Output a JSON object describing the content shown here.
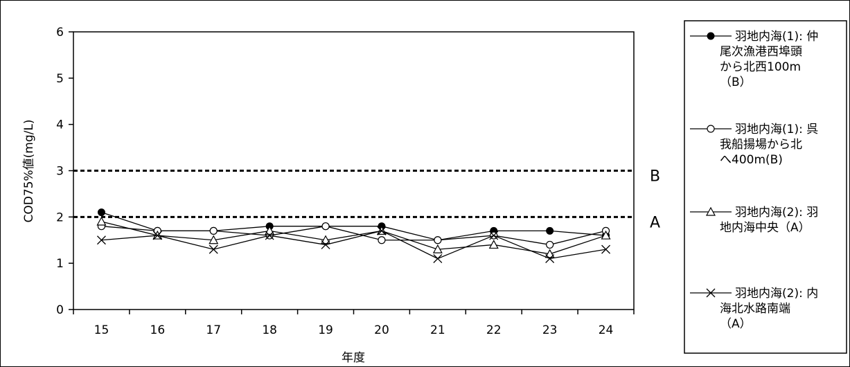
{
  "chart_data": {
    "type": "line",
    "title": "",
    "xlabel": "年度",
    "ylabel": "COD75%値(mg/L)",
    "categories": [
      "15",
      "16",
      "17",
      "18",
      "19",
      "20",
      "21",
      "22",
      "23",
      "24"
    ],
    "ylim": [
      0,
      6
    ],
    "yticks": [
      "0",
      "1",
      "2",
      "3",
      "4",
      "5",
      "6"
    ],
    "grid": false,
    "legend_position": "right",
    "reference_lines": [
      {
        "label": "B",
        "value": 3
      },
      {
        "label": "A",
        "value": 2
      }
    ],
    "series": [
      {
        "name": "羽地内海(1): 仲尾次漁港西埠頭から北西100m（B）",
        "legend_lines": [
          "羽地内海(1): 仲",
          "尾次漁港西埠頭",
          "から北西100m",
          "（B）"
        ],
        "marker": "filled-circle",
        "values": [
          2.1,
          1.7,
          1.7,
          1.8,
          1.8,
          1.8,
          1.5,
          1.7,
          1.7,
          1.6
        ]
      },
      {
        "name": "羽地内海(1): 呉我船揚場から北へ400m(B)",
        "legend_lines": [
          "羽地内海(1): 呉",
          "我船揚場から北",
          "へ400m(B)"
        ],
        "marker": "open-circle",
        "values": [
          1.8,
          1.7,
          1.7,
          1.6,
          1.8,
          1.5,
          1.5,
          1.6,
          1.4,
          1.7
        ]
      },
      {
        "name": "羽地内海(2): 羽地内海中央（A）",
        "legend_lines": [
          "羽地内海(2): 羽",
          "地内海中央（A）"
        ],
        "marker": "open-triangle",
        "values": [
          1.9,
          1.6,
          1.5,
          1.7,
          1.5,
          1.7,
          1.3,
          1.4,
          1.2,
          1.6
        ]
      },
      {
        "name": "羽地内海(2): 内海北水路南端（A）",
        "legend_lines": [
          "羽地内海(2): 内",
          "海北水路南端",
          "（A）"
        ],
        "marker": "cross",
        "values": [
          1.5,
          1.6,
          1.3,
          1.6,
          1.4,
          1.7,
          1.1,
          1.6,
          1.1,
          1.3
        ]
      }
    ]
  }
}
